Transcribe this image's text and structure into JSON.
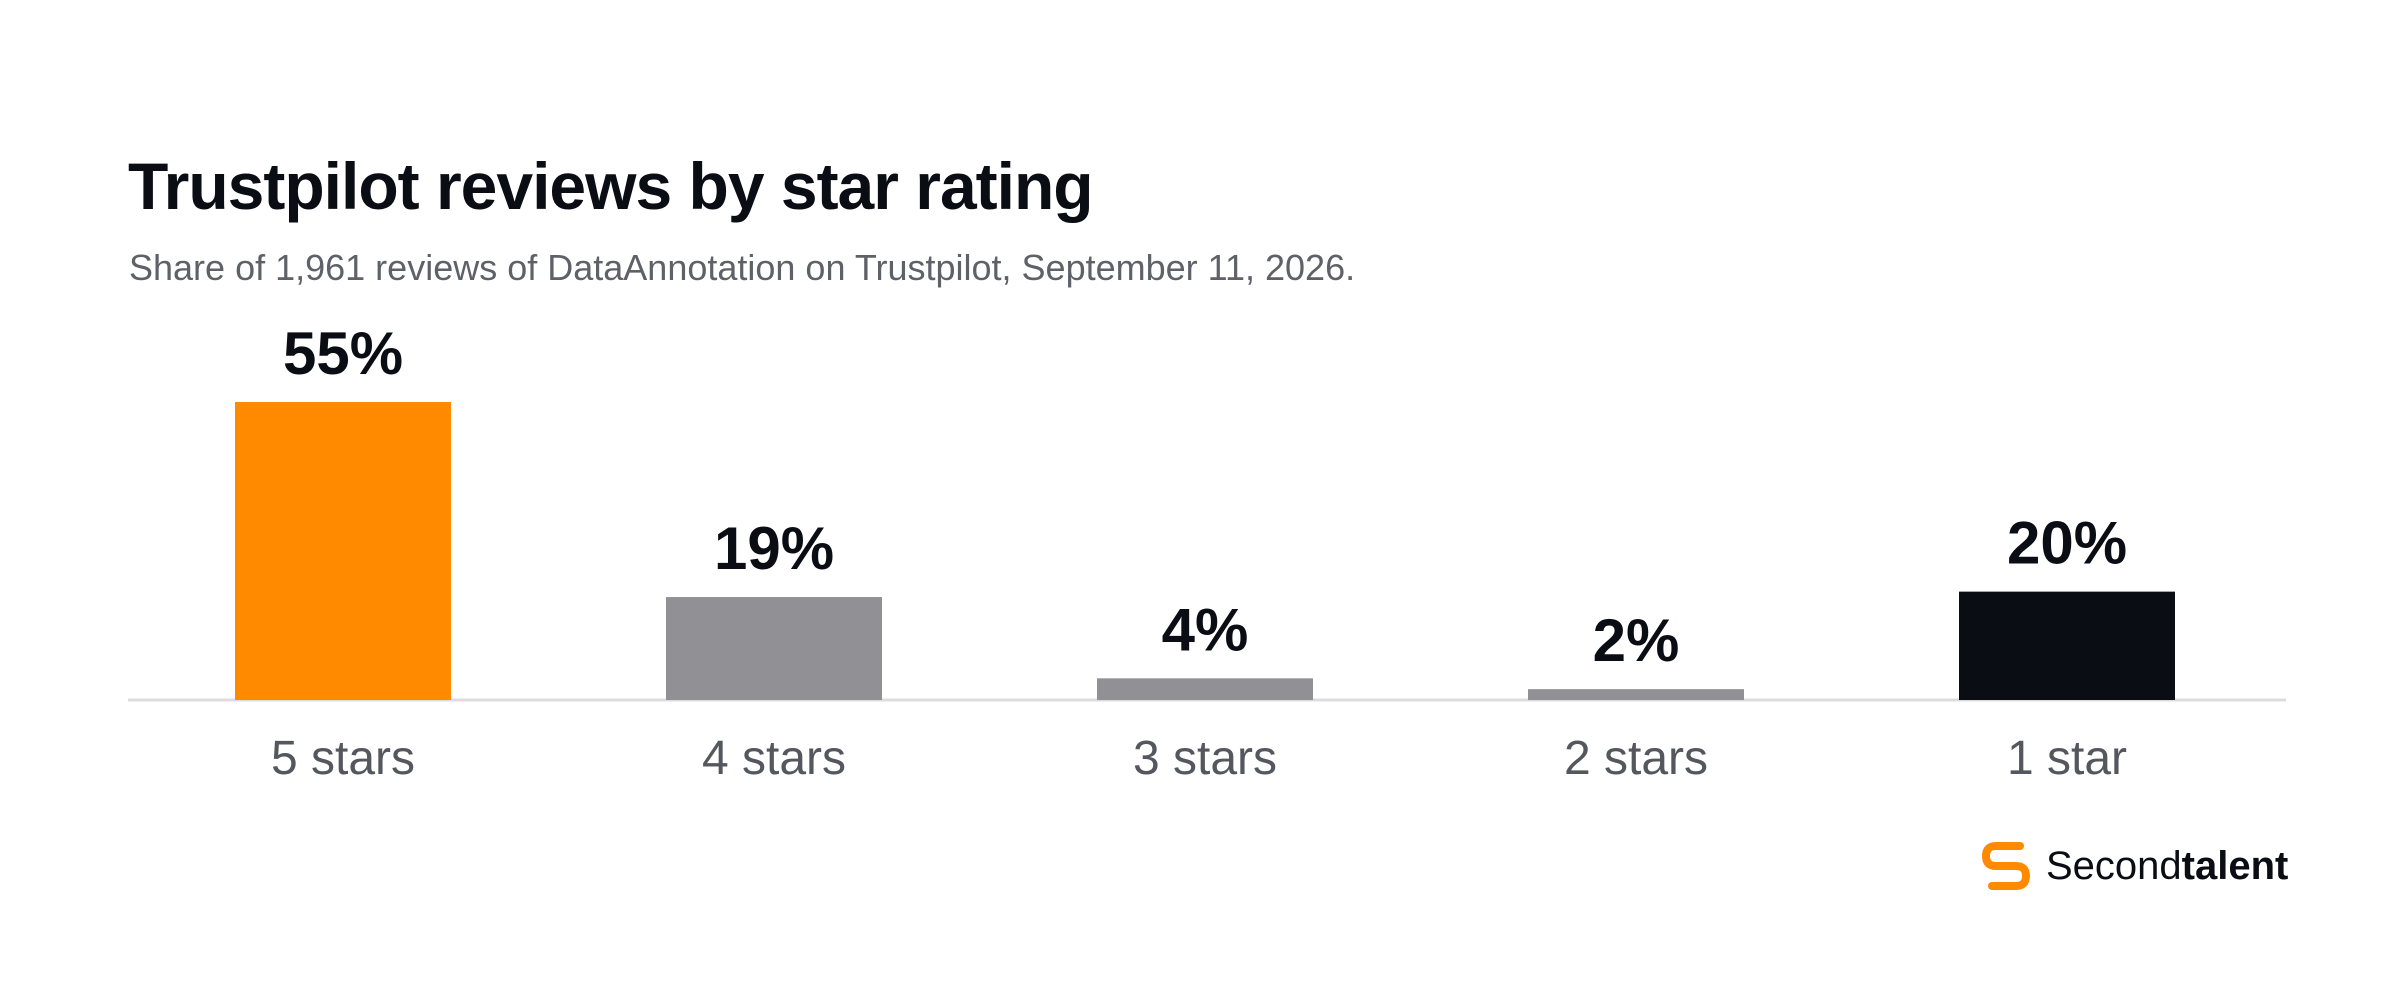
{
  "title": "Trustpilot reviews by star rating",
  "subtitle": "Share of 1,961 reviews of DataAnnotation on Trustpilot, September 11, 2026.",
  "chart_data": {
    "type": "bar",
    "title": "Trustpilot reviews by star rating",
    "subtitle": "Share of 1,961 reviews of DataAnnotation on Trustpilot, September 11, 2026.",
    "categories": [
      "5 stars",
      "4 stars",
      "3 stars",
      "2 stars",
      "1 star"
    ],
    "values": [
      55,
      19,
      4,
      2,
      20
    ],
    "value_labels": [
      "55%",
      "19%",
      "4%",
      "2%",
      "20%"
    ],
    "colors": [
      "#ff8a00",
      "#919195",
      "#919195",
      "#919195",
      "#0b0d14"
    ],
    "unit": "%",
    "ylim": [
      0,
      55
    ],
    "grid": false,
    "legend": "none"
  },
  "brand": {
    "name_regular": "Second",
    "name_bold": "talent",
    "logo_icon": "secondtalent-logo-icon",
    "accent_color": "#ff8a00"
  }
}
